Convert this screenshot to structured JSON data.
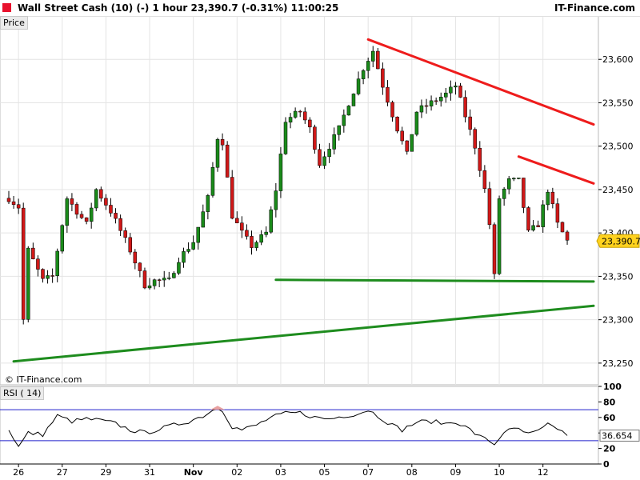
{
  "header": {
    "title": "Wall Street Cash (10) (-)   1 hour   23,390.7 (-0.31%)   11:00:25",
    "brand": "IT-Finance.com",
    "brand_color": "#e8112d"
  },
  "price_panel": {
    "label": "Price",
    "watermark": "© IT-Finance.com",
    "last_price_label": "23,390.7",
    "last_price_bg": "#ffd21e"
  },
  "rsi_panel": {
    "label": "RSI ( 14)",
    "last_value_label": "36.654"
  },
  "chart_data": [
    {
      "type": "candlestick",
      "timeframe": "1 hour",
      "instrument": "Wall Street Cash (10) (-)",
      "ylim": [
        23225,
        23650
      ],
      "y_ticks": [
        23250,
        23300,
        23350,
        23400,
        23450,
        23500,
        23550,
        23600
      ],
      "y_tick_labels": [
        "23,250",
        "23,300",
        "23,350",
        "23,400",
        "23,450",
        "23,500",
        "23,550",
        "23,600"
      ],
      "x_tick_labels": [
        "26",
        "27",
        "29",
        "31",
        "Nov",
        "02",
        "03",
        "05",
        "07",
        "08",
        "09",
        "10",
        "12"
      ],
      "x_tick_index": [
        2,
        11,
        20,
        29,
        38,
        47,
        56,
        65,
        74,
        83,
        92,
        101,
        110
      ],
      "bar_count": 116,
      "last_price": 23390.7,
      "grid": true,
      "colors": {
        "up": "#1a8a1a",
        "down": "#d01818",
        "wick": "#000000",
        "resistance": "#ee1c1c",
        "support": "#1e8c1e"
      },
      "close_path": [
        [
          0,
          23440
        ],
        [
          2,
          23430
        ],
        [
          3,
          23300
        ],
        [
          4,
          23380
        ],
        [
          7,
          23345
        ],
        [
          9,
          23350
        ],
        [
          12,
          23440
        ],
        [
          16,
          23410
        ],
        [
          18,
          23450
        ],
        [
          21,
          23425
        ],
        [
          25,
          23380
        ],
        [
          28,
          23340
        ],
        [
          30,
          23345
        ],
        [
          33,
          23345
        ],
        [
          35,
          23370
        ],
        [
          38,
          23390
        ],
        [
          41,
          23440
        ],
        [
          43,
          23510
        ],
        [
          44,
          23505
        ],
        [
          46,
          23420
        ],
        [
          48,
          23400
        ],
        [
          50,
          23385
        ],
        [
          53,
          23400
        ],
        [
          55,
          23450
        ],
        [
          57,
          23530
        ],
        [
          60,
          23540
        ],
        [
          62,
          23520
        ],
        [
          64,
          23480
        ],
        [
          66,
          23500
        ],
        [
          68,
          23520
        ],
        [
          70,
          23550
        ],
        [
          73,
          23590
        ],
        [
          75,
          23610
        ],
        [
          77,
          23570
        ],
        [
          80,
          23520
        ],
        [
          82,
          23490
        ],
        [
          84,
          23540
        ],
        [
          87,
          23550
        ],
        [
          90,
          23560
        ],
        [
          92,
          23570
        ],
        [
          94,
          23535
        ],
        [
          96,
          23500
        ],
        [
          98,
          23450
        ],
        [
          99,
          23410
        ],
        [
          100,
          23350
        ],
        [
          101,
          23440
        ],
        [
          103,
          23460
        ],
        [
          105,
          23460
        ],
        [
          107,
          23400
        ],
        [
          109,
          23410
        ],
        [
          111,
          23450
        ],
        [
          113,
          23410
        ],
        [
          115,
          23390.7
        ]
      ],
      "trendlines": [
        {
          "role": "resistance",
          "color": "#ee1c1c",
          "from": [
            74,
            23623
          ],
          "to": [
            123,
            23525
          ]
        },
        {
          "role": "resistance",
          "color": "#ee1c1c",
          "from": [
            105,
            23488
          ],
          "to": [
            123,
            23457
          ]
        },
        {
          "role": "support",
          "color": "#1e8c1e",
          "from": [
            55,
            23346
          ],
          "to": [
            123,
            23344
          ]
        },
        {
          "role": "support",
          "color": "#1e8c1e",
          "from": [
            1,
            23252
          ],
          "to": [
            123,
            23316
          ]
        }
      ]
    },
    {
      "type": "line",
      "name": "RSI ( 14)",
      "ylim": [
        0,
        100
      ],
      "y_ticks": [
        0,
        20,
        40,
        60,
        80,
        100
      ],
      "y_tick_labels": [
        "0",
        "20",
        "40",
        "60",
        "80",
        "100"
      ],
      "levels": [
        30,
        70
      ],
      "last_value": 36.654,
      "colors": {
        "line": "#000000",
        "levels": "#2020cc",
        "overbought_fill": "#e8a0a0",
        "oversold_fill": "#a0a0e8"
      },
      "path": [
        [
          0,
          45
        ],
        [
          2,
          22
        ],
        [
          4,
          40
        ],
        [
          7,
          38
        ],
        [
          10,
          62
        ],
        [
          13,
          55
        ],
        [
          16,
          58
        ],
        [
          19,
          56
        ],
        [
          22,
          52
        ],
        [
          25,
          44
        ],
        [
          28,
          40
        ],
        [
          31,
          45
        ],
        [
          34,
          50
        ],
        [
          37,
          55
        ],
        [
          40,
          62
        ],
        [
          43,
          73
        ],
        [
          44,
          70
        ],
        [
          46,
          48
        ],
        [
          48,
          44
        ],
        [
          51,
          50
        ],
        [
          54,
          60
        ],
        [
          57,
          65
        ],
        [
          60,
          66
        ],
        [
          63,
          60
        ],
        [
          66,
          58
        ],
        [
          69,
          62
        ],
        [
          72,
          65
        ],
        [
          74,
          70
        ],
        [
          76,
          62
        ],
        [
          79,
          50
        ],
        [
          81,
          44
        ],
        [
          84,
          54
        ],
        [
          87,
          55
        ],
        [
          90,
          52
        ],
        [
          92,
          55
        ],
        [
          95,
          44
        ],
        [
          97,
          35
        ],
        [
          99,
          30
        ],
        [
          100,
          25
        ],
        [
          102,
          42
        ],
        [
          105,
          45
        ],
        [
          107,
          38
        ],
        [
          109,
          42
        ],
        [
          111,
          50
        ],
        [
          113,
          46
        ],
        [
          115,
          36.654
        ]
      ]
    }
  ]
}
